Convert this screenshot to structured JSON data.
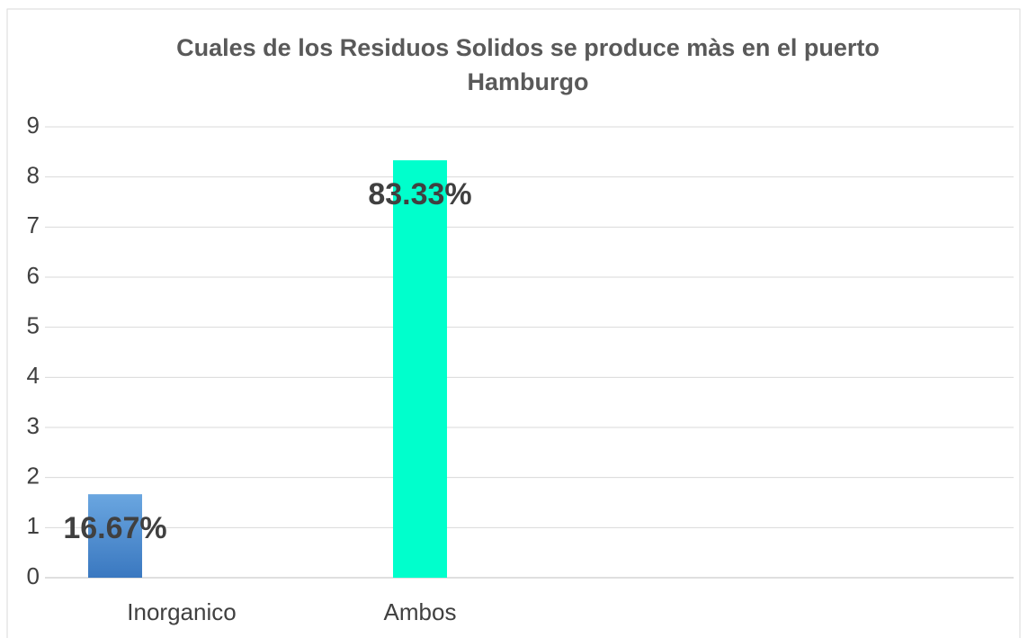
{
  "chart_data": {
    "type": "bar",
    "title": "Cuales de los Residuos Solidos se produce màs en el puerto Hamburgo",
    "categories": [
      "Inorganico",
      "Ambos"
    ],
    "values": [
      1.667,
      8.333
    ],
    "value_labels": [
      "16.67%",
      "83.33%"
    ],
    "colors": [
      "#4a8bd0",
      "#00ffcc"
    ],
    "ylim": [
      0,
      9
    ],
    "yticks": [
      0,
      1,
      2,
      3,
      4,
      5,
      6,
      7,
      8,
      9
    ],
    "grid": true
  }
}
